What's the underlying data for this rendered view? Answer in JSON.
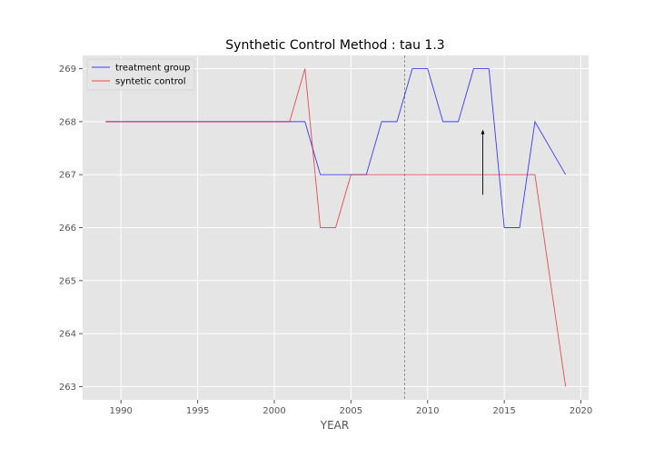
{
  "chart_data": {
    "type": "line",
    "title": "Synthetic Control Method : tau 1.3",
    "xlabel": "YEAR",
    "ylabel": "",
    "xlim": [
      1987.5,
      2020.5
    ],
    "ylim": [
      262.75,
      269.25
    ],
    "xticks": [
      1990,
      1995,
      2000,
      2005,
      2010,
      2015,
      2020
    ],
    "yticks": [
      263,
      264,
      265,
      266,
      267,
      268,
      269
    ],
    "grid": true,
    "legend_position": "top-left",
    "background_color": "#e5e5e5",
    "series": [
      {
        "name": "treatment group",
        "color": "#0000ff",
        "x": [
          1989,
          1990,
          1991,
          1992,
          1993,
          1994,
          1995,
          1996,
          1997,
          1998,
          1999,
          2000,
          2001,
          2002,
          2003,
          2004,
          2005,
          2006,
          2007,
          2008,
          2009,
          2010,
          2011,
          2012,
          2013,
          2014,
          2015,
          2016,
          2017,
          2018,
          2019
        ],
        "values": [
          268,
          268,
          268,
          268,
          268,
          268,
          268,
          268,
          268,
          268,
          268,
          268,
          268,
          268,
          267,
          267,
          267,
          267,
          268,
          268,
          269,
          269,
          268,
          268,
          269,
          269,
          266,
          266,
          268,
          267.5,
          267
        ]
      },
      {
        "name": "syntetic control",
        "color": "#e41a1c",
        "x": [
          1989,
          1990,
          1991,
          1992,
          1993,
          1994,
          1995,
          1996,
          1997,
          1998,
          1999,
          2000,
          2001,
          2002,
          2003,
          2004,
          2005,
          2006,
          2007,
          2008,
          2009,
          2010,
          2011,
          2012,
          2013,
          2014,
          2015,
          2016,
          2017,
          2018,
          2019
        ],
        "values": [
          268,
          268,
          268,
          268,
          268,
          268,
          268,
          268,
          268,
          268,
          268,
          268,
          268,
          269,
          266,
          266,
          267,
          267,
          267,
          267,
          267,
          267,
          267,
          267,
          267,
          267,
          267,
          267,
          267,
          265,
          263
        ]
      }
    ],
    "vline": {
      "x": 2008.5,
      "style": "dashed",
      "color": "#808080"
    },
    "arrow": {
      "x": 2013.6,
      "y_start": 266.62,
      "y_end": 267.85,
      "color": "#000000"
    }
  }
}
